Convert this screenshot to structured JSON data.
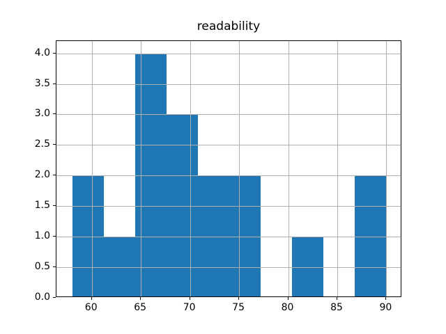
{
  "title": "readability",
  "chart_data": {
    "type": "bar",
    "subtype": "histogram",
    "title": "readability",
    "xlabel": "",
    "ylabel": "",
    "bin_edges": [
      58.0,
      61.2,
      64.4,
      67.6,
      70.8,
      74.0,
      77.2,
      80.4,
      83.6,
      86.8,
      90.0
    ],
    "counts": [
      2,
      1,
      4,
      3,
      2,
      2,
      0,
      1,
      0,
      2
    ],
    "x_ticks": [
      60,
      65,
      70,
      75,
      80,
      85,
      90
    ],
    "x_tick_labels": [
      "60",
      "65",
      "70",
      "75",
      "80",
      "85",
      "90"
    ],
    "y_ticks": [
      0.0,
      0.5,
      1.0,
      1.5,
      2.0,
      2.5,
      3.0,
      3.5,
      4.0
    ],
    "y_tick_labels": [
      "0.0",
      "0.5",
      "1.0",
      "1.5",
      "2.0",
      "2.5",
      "3.0",
      "3.5",
      "4.0"
    ],
    "xlim": [
      56.4,
      91.6
    ],
    "ylim": [
      0.0,
      4.2
    ],
    "grid": true,
    "grid_above_bars": true,
    "legend": false,
    "colors": {
      "bar": "#1f77b4",
      "grid": "#b0b0b0",
      "spine": "#000000",
      "text": "#000000",
      "background": "#ffffff"
    }
  }
}
